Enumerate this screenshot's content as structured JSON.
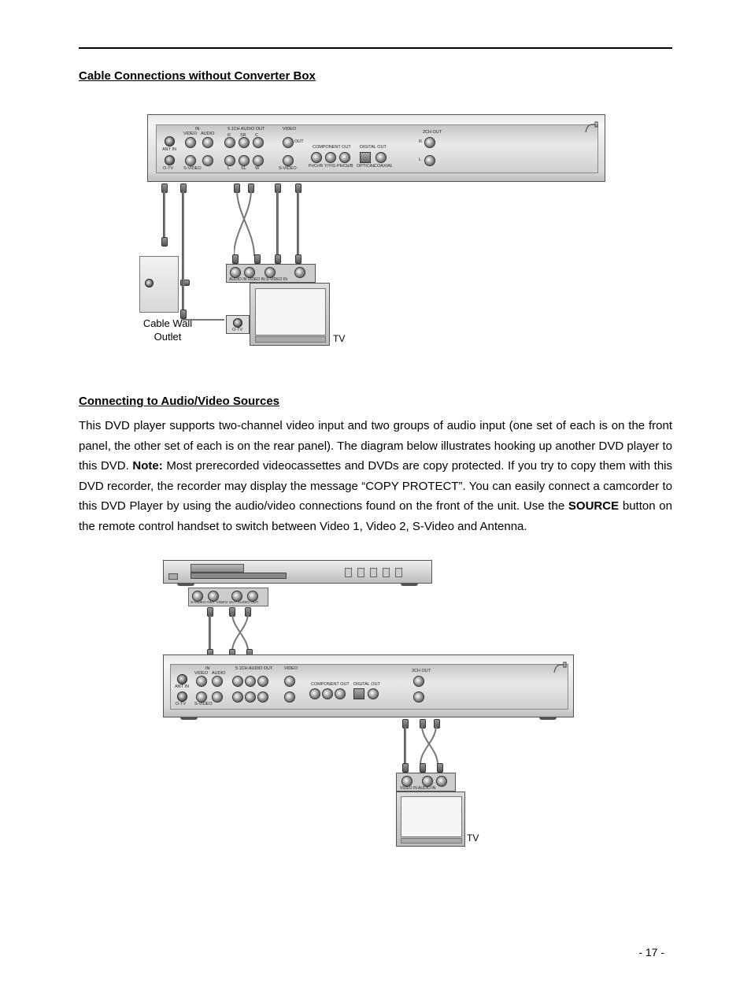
{
  "section1_title": "Cable Connections without Converter Box",
  "section2_title": "Connecting to Audio/Video Sources",
  "body_para_parts": {
    "p1": "This DVD player supports two-channel video input and two groups of audio input (one set of each is on the front panel, the other set of each is on the rear panel). The diagram below illustrates hooking up another DVD player to this DVD.   ",
    "note_label": "Note:",
    "p2": " Most prerecorded videocassettes and DVDs are copy protected. If you try to copy them with this DVD recorder, the recorder may display the message “COPY PROTECT”.   You can easily connect a camcorder to this DVD Player by using the audio/video connections found on the front of the unit.   Use the ",
    "source_label": "SOURCE",
    "p3": " button on the remote control handset to switch between Video 1, Video 2, S-Video and Antenna."
  },
  "page_number": "- 17 -",
  "diagram1": {
    "wall_outlet_label": "Cable Wall\nOutlet",
    "tv_label": "TV",
    "tv_coax_label": "O-TV",
    "tv_in_labels": "AUDIO IN   VIDEO IN  S-VIDEO IN",
    "back_labels": {
      "in": "IN",
      "video": "VIDEO",
      "audio": "AUDIO",
      "ant_in": "ANT IN",
      "otv": "O-TV",
      "svideo": "S-VIDEO",
      "audio_out": "5.1CH AUDIO OUT",
      "r": "R",
      "sr": "SR",
      "c": "C",
      "l": "L",
      "sl": "SL",
      "w": "W",
      "video_grp": "VIDEO",
      "svideo_out": "S-VIDEO",
      "out": "OUT",
      "comp": "COMPONENT OUT",
      "pc": "Pr/Cr/R",
      "yg": "Y/Y/G",
      "pb": "Pb/Cb/B",
      "dig": "DIGITAL OUT",
      "opt": "OPTICAL",
      "coax": "COAXIAL",
      "ch2": "2CH OUT",
      "r2": "R",
      "l2": "L"
    }
  },
  "diagram2": {
    "tv_label": "TV",
    "tv_in_labels": "VIDEO IN   AUDIO IN",
    "dvd_out_label": "S-VIDEO OUT VIDEO OUT AUDIO OUT"
  },
  "style": {
    "page_bg": "#ffffff",
    "text_color": "#000000",
    "metal_light": "#e8e8e8",
    "metal_dark": "#bcbcbc",
    "wire_color": "#777777"
  }
}
